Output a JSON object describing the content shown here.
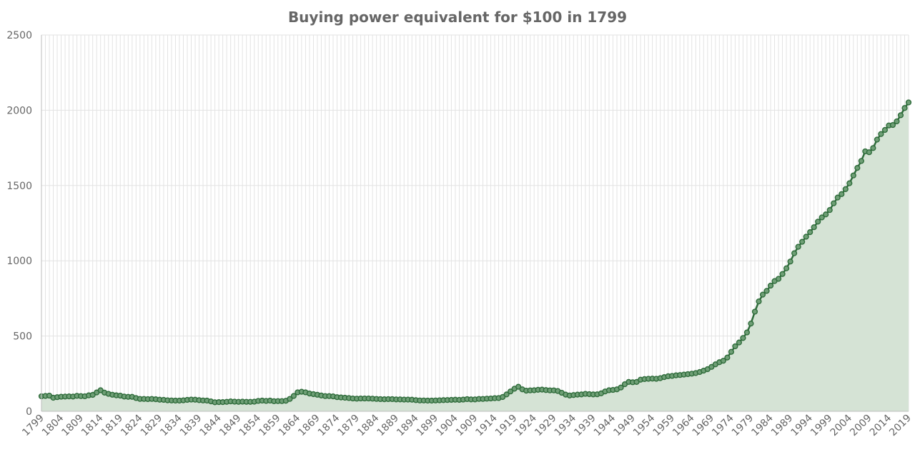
{
  "chart_data": {
    "type": "area",
    "title": "Buying power equivalent for $100 in 1799",
    "xlabel": "",
    "ylabel": "",
    "xlim": [
      1799,
      2019
    ],
    "ylim": [
      0,
      2500
    ],
    "y_ticks": [
      0,
      500,
      1000,
      1500,
      2000,
      2500
    ],
    "x_tick_labels": [
      "1799",
      "1804",
      "1809",
      "1814",
      "1819",
      "1824",
      "1829",
      "1834",
      "1839",
      "1844",
      "1849",
      "1854",
      "1859",
      "1864",
      "1869",
      "1874",
      "1879",
      "1884",
      "1889",
      "1894",
      "1899",
      "1904",
      "1909",
      "1914",
      "1919",
      "1924",
      "1929",
      "1934",
      "1939",
      "1944",
      "1949",
      "1954",
      "1959",
      "1964",
      "1969",
      "1974",
      "1979",
      "1984",
      "1989",
      "1994",
      "1999",
      "2004",
      "2009",
      "2014",
      "2019"
    ],
    "grid": true,
    "legend": "none",
    "colors": {
      "line": "#2e6b3a",
      "fill": "#d5e3d5",
      "marker_fill": "#6f9f76"
    },
    "key_points": [
      [
        1799,
        100
      ],
      [
        1800,
        102
      ],
      [
        1801,
        104
      ],
      [
        1802,
        90
      ],
      [
        1803,
        94
      ],
      [
        1804,
        97
      ],
      [
        1805,
        98
      ],
      [
        1806,
        99
      ],
      [
        1807,
        98
      ],
      [
        1808,
        103
      ],
      [
        1809,
        101
      ],
      [
        1810,
        100
      ],
      [
        1811,
        106
      ],
      [
        1812,
        109
      ],
      [
        1813,
        125
      ],
      [
        1814,
        140
      ],
      [
        1815,
        124
      ],
      [
        1816,
        116
      ],
      [
        1817,
        110
      ],
      [
        1818,
        106
      ],
      [
        1819,
        104
      ],
      [
        1820,
        98
      ],
      [
        1821,
        96
      ],
      [
        1822,
        96
      ],
      [
        1823,
        88
      ],
      [
        1824,
        82
      ],
      [
        1825,
        82
      ],
      [
        1826,
        81
      ],
      [
        1827,
        82
      ],
      [
        1828,
        80
      ],
      [
        1829,
        77
      ],
      [
        1830,
        76
      ],
      [
        1831,
        73
      ],
      [
        1832,
        72
      ],
      [
        1833,
        71
      ],
      [
        1834,
        71
      ],
      [
        1835,
        73
      ],
      [
        1836,
        76
      ],
      [
        1837,
        78
      ],
      [
        1838,
        77
      ],
      [
        1839,
        74
      ],
      [
        1840,
        72
      ],
      [
        1841,
        71
      ],
      [
        1842,
        66
      ],
      [
        1843,
        60
      ],
      [
        1844,
        61
      ],
      [
        1845,
        61
      ],
      [
        1846,
        63
      ],
      [
        1847,
        66
      ],
      [
        1848,
        64
      ],
      [
        1849,
        63
      ],
      [
        1850,
        64
      ],
      [
        1851,
        63
      ],
      [
        1852,
        63
      ],
      [
        1853,
        64
      ],
      [
        1854,
        69
      ],
      [
        1855,
        71
      ],
      [
        1856,
        69
      ],
      [
        1857,
        71
      ],
      [
        1858,
        67
      ],
      [
        1859,
        68
      ],
      [
        1860,
        68
      ],
      [
        1861,
        70
      ],
      [
        1862,
        82
      ],
      [
        1863,
        102
      ],
      [
        1864,
        126
      ],
      [
        1865,
        130
      ],
      [
        1866,
        126
      ],
      [
        1867,
        118
      ],
      [
        1868,
        114
      ],
      [
        1869,
        110
      ],
      [
        1870,
        105
      ],
      [
        1871,
        101
      ],
      [
        1872,
        101
      ],
      [
        1873,
        99
      ],
      [
        1874,
        94
      ],
      [
        1875,
        92
      ],
      [
        1876,
        90
      ],
      [
        1877,
        88
      ],
      [
        1878,
        85
      ],
      [
        1879,
        84
      ],
      [
        1880,
        85
      ],
      [
        1881,
        85
      ],
      [
        1882,
        85
      ],
      [
        1883,
        84
      ],
      [
        1884,
        82
      ],
      [
        1885,
        81
      ],
      [
        1886,
        80
      ],
      [
        1887,
        81
      ],
      [
        1888,
        81
      ],
      [
        1889,
        79
      ],
      [
        1890,
        79
      ],
      [
        1891,
        78
      ],
      [
        1892,
        78
      ],
      [
        1893,
        77
      ],
      [
        1894,
        74
      ],
      [
        1895,
        72
      ],
      [
        1896,
        72
      ],
      [
        1897,
        71
      ],
      [
        1898,
        71
      ],
      [
        1899,
        72
      ],
      [
        1900,
        73
      ],
      [
        1901,
        74
      ],
      [
        1902,
        75
      ],
      [
        1903,
        76
      ],
      [
        1904,
        77
      ],
      [
        1905,
        76
      ],
      [
        1906,
        78
      ],
      [
        1907,
        81
      ],
      [
        1908,
        79
      ],
      [
        1909,
        79
      ],
      [
        1910,
        82
      ],
      [
        1911,
        82
      ],
      [
        1912,
        84
      ],
      [
        1913,
        85
      ],
      [
        1914,
        87
      ],
      [
        1915,
        88
      ],
      [
        1916,
        95
      ],
      [
        1917,
        112
      ],
      [
        1918,
        132
      ],
      [
        1919,
        150
      ],
      [
        1920,
        163
      ],
      [
        1921,
        146
      ],
      [
        1922,
        137
      ],
      [
        1923,
        139
      ],
      [
        1924,
        140
      ],
      [
        1925,
        143
      ],
      [
        1926,
        144
      ],
      [
        1927,
        141
      ],
      [
        1928,
        139
      ],
      [
        1929,
        139
      ],
      [
        1930,
        135
      ],
      [
        1931,
        123
      ],
      [
        1932,
        111
      ],
      [
        1933,
        105
      ],
      [
        1934,
        108
      ],
      [
        1935,
        111
      ],
      [
        1936,
        112
      ],
      [
        1937,
        116
      ],
      [
        1938,
        114
      ],
      [
        1939,
        112
      ],
      [
        1940,
        113
      ],
      [
        1941,
        119
      ],
      [
        1942,
        132
      ],
      [
        1943,
        140
      ],
      [
        1944,
        142
      ],
      [
        1945,
        146
      ],
      [
        1946,
        158
      ],
      [
        1947,
        180
      ],
      [
        1948,
        195
      ],
      [
        1949,
        193
      ],
      [
        1950,
        195
      ],
      [
        1951,
        210
      ],
      [
        1952,
        214
      ],
      [
        1953,
        216
      ],
      [
        1954,
        217
      ],
      [
        1955,
        216
      ],
      [
        1956,
        220
      ],
      [
        1957,
        227
      ],
      [
        1958,
        233
      ],
      [
        1959,
        235
      ],
      [
        1960,
        239
      ],
      [
        1961,
        241
      ],
      [
        1962,
        244
      ],
      [
        1963,
        247
      ],
      [
        1964,
        250
      ],
      [
        1965,
        254
      ],
      [
        1966,
        261
      ],
      [
        1967,
        270
      ],
      [
        1968,
        280
      ],
      [
        1969,
        295
      ],
      [
        1970,
        312
      ],
      [
        1971,
        326
      ],
      [
        1972,
        336
      ],
      [
        1973,
        357
      ],
      [
        1974,
        395
      ],
      [
        1975,
        432
      ],
      [
        1976,
        457
      ],
      [
        1977,
        487
      ],
      [
        1978,
        524
      ],
      [
        1979,
        583
      ],
      [
        1980,
        662
      ],
      [
        1981,
        730
      ],
      [
        1982,
        775
      ],
      [
        1983,
        800
      ],
      [
        1984,
        835
      ],
      [
        1985,
        865
      ],
      [
        1986,
        880
      ],
      [
        1987,
        912
      ],
      [
        1988,
        950
      ],
      [
        1989,
        995
      ],
      [
        1990,
        1050
      ],
      [
        1991,
        1093
      ],
      [
        1992,
        1126
      ],
      [
        1993,
        1160
      ],
      [
        1994,
        1190
      ],
      [
        1995,
        1223
      ],
      [
        1996,
        1260
      ],
      [
        1997,
        1288
      ],
      [
        1998,
        1308
      ],
      [
        1999,
        1337
      ],
      [
        2000,
        1382
      ],
      [
        2001,
        1420
      ],
      [
        2002,
        1443
      ],
      [
        2003,
        1476
      ],
      [
        2004,
        1515
      ],
      [
        2005,
        1567
      ],
      [
        2006,
        1617
      ],
      [
        2007,
        1663
      ],
      [
        2008,
        1727
      ],
      [
        2009,
        1721
      ],
      [
        2010,
        1749
      ],
      [
        2011,
        1805
      ],
      [
        2012,
        1842
      ],
      [
        2013,
        1869
      ],
      [
        2014,
        1899
      ],
      [
        2015,
        1902
      ],
      [
        2016,
        1926
      ],
      [
        2017,
        1967
      ],
      [
        2018,
        2015
      ],
      [
        2019,
        2052
      ]
    ]
  }
}
